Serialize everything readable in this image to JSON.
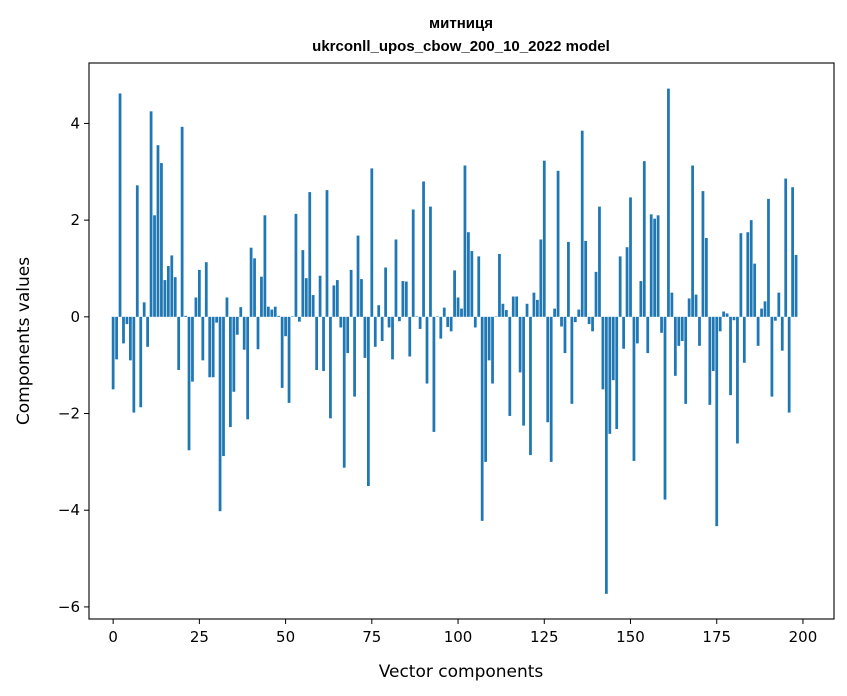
{
  "chart_data": {
    "type": "bar",
    "title": "митниця",
    "subtitle": "ukrconll_upos_cbow_200_10_2022 model",
    "xlabel": "Vector components",
    "ylabel": "Components values",
    "xlim": [
      -7,
      209
    ],
    "ylim": [
      -6.25,
      5.25
    ],
    "xticks": [
      0,
      25,
      50,
      75,
      100,
      125,
      150,
      175,
      200
    ],
    "yticks": [
      -6,
      -4,
      -2,
      0,
      2,
      4
    ],
    "ytick_labels": [
      "−6",
      "−4",
      "−2",
      "0",
      "2",
      "4"
    ],
    "bar_color": "#1f77b4",
    "grid": false,
    "values": [
      -1.5,
      -0.88,
      4.62,
      -0.55,
      -0.15,
      -0.9,
      -1.98,
      2.72,
      -1.87,
      0.3,
      -0.62,
      4.25,
      2.1,
      3.55,
      3.18,
      0.76,
      1.05,
      1.27,
      0.82,
      -1.1,
      3.93,
      0.02,
      -2.76,
      -1.34,
      0.4,
      0.97,
      -0.9,
      1.13,
      -1.25,
      -1.25,
      -0.12,
      -4.02,
      -2.88,
      0.4,
      -2.28,
      -1.55,
      -0.37,
      0.2,
      -0.68,
      -2.12,
      1.43,
      1.21,
      -0.67,
      0.83,
      2.1,
      0.21,
      0.15,
      0.21,
      0.02,
      -1.47,
      -0.4,
      -1.78,
      0.01,
      2.13,
      -0.1,
      1.38,
      0.8,
      2.58,
      0.45,
      -1.1,
      0.85,
      -1.12,
      2.62,
      -2.1,
      0.65,
      0.76,
      -0.22,
      -3.12,
      -0.75,
      0.97,
      -1.65,
      1.68,
      0.78,
      -0.85,
      -3.5,
      3.07,
      -0.62,
      0.24,
      -0.5,
      1.02,
      -0.22,
      -0.88,
      1.6,
      -0.09,
      0.74,
      0.73,
      -0.82,
      2.22,
      0.01,
      -0.25,
      2.8,
      -1.38,
      2.28,
      -2.38,
      0.01,
      -0.45,
      0.19,
      -0.21,
      -0.3,
      0.96,
      0.4,
      0.17,
      3.13,
      1.75,
      1.36,
      -0.22,
      1.25,
      -4.22,
      -3.0,
      -0.9,
      -1.38,
      0.01,
      1.3,
      0.27,
      0.14,
      -2.05,
      0.42,
      0.42,
      -1.15,
      -2.25,
      0.27,
      -2.86,
      0.5,
      0.35,
      1.6,
      3.23,
      -2.18,
      -3.0,
      0.17,
      3.02,
      -0.2,
      -0.75,
      1.55,
      -1.8,
      -0.11,
      0.15,
      3.85,
      1.57,
      -0.15,
      -0.3,
      0.93,
      2.28,
      -1.5,
      -5.73,
      -2.42,
      -1.31,
      -2.32,
      1.25,
      -0.66,
      1.44,
      2.47,
      -2.98,
      -0.55,
      0.74,
      3.22,
      -0.75,
      2.12,
      2.03,
      2.1,
      -0.33,
      -3.78,
      4.72,
      0.5,
      -1.22,
      -0.6,
      -0.5,
      -1.8,
      0.38,
      3.13,
      0.46,
      -0.6,
      2.6,
      1.63,
      -1.82,
      -1.12,
      -4.33,
      -0.3,
      0.11,
      0.07,
      -1.62,
      -0.07,
      -2.62,
      1.73,
      -0.95,
      1.75,
      2.0,
      1.1,
      -0.6,
      0.17,
      0.32,
      2.44,
      -1.65,
      -0.08,
      0.5,
      -0.7,
      2.86,
      -1.98,
      2.68,
      1.28
    ]
  }
}
